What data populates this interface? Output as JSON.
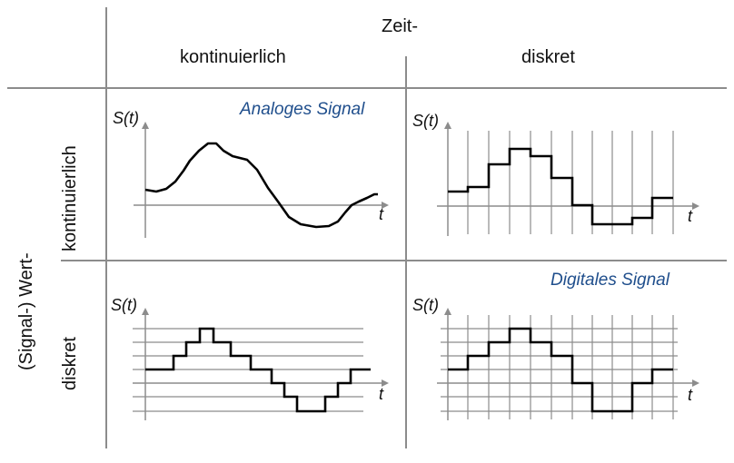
{
  "header": {
    "time": "Zeit-",
    "col_continuous": "kontinuierlich",
    "col_discrete": "diskret"
  },
  "side": {
    "value": "(Signal-) Wert-",
    "row_continuous": "kontinuierlich",
    "row_discrete": "diskret"
  },
  "panels": {
    "analog_title": "Analoges Signal",
    "digital_title": "Digitales Signal",
    "y_label": "S(t)",
    "x_label": "t"
  },
  "colors": {
    "grid_lines": "#8c8c8c",
    "signal": "#000000",
    "title": "#1f4e8c"
  }
}
